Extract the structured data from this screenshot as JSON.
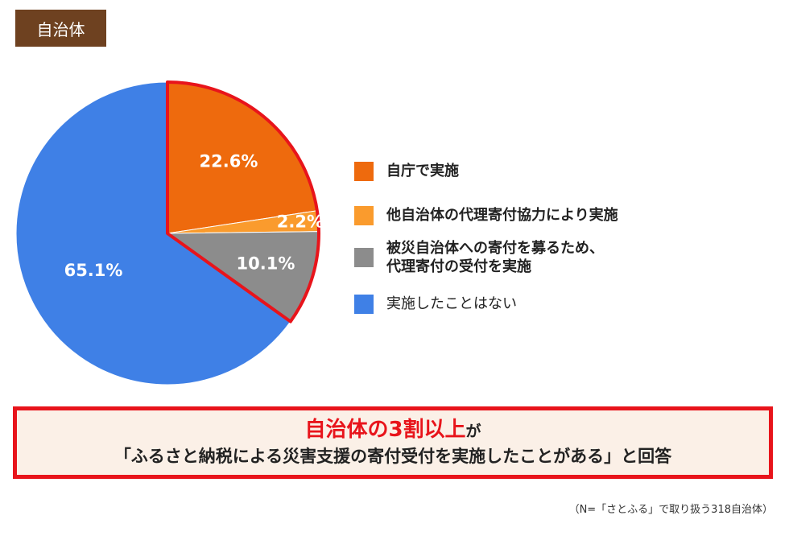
{
  "tag": {
    "label": "自治体"
  },
  "chart_data": {
    "type": "pie",
    "title": "自治体",
    "start_angle_deg": 0,
    "direction": "clockwise",
    "highlight_indices": [
      0,
      1,
      2
    ],
    "highlight_color": "#e8141b",
    "slices": [
      {
        "label": "自庁で実施",
        "value": 22.6,
        "display": "22.6%",
        "color": "#ee6a0d"
      },
      {
        "label": "他自治体の代理寄付協力により実施",
        "value": 2.2,
        "display": "2.2%",
        "color": "#fa9b2d"
      },
      {
        "label": "被災自治体への寄付を募るため、\n代理寄付の受付を実施",
        "value": 10.1,
        "display": "10.1%",
        "color": "#8c8c8c"
      },
      {
        "label": "実施したことはない",
        "value": 65.1,
        "display": "65.1%",
        "color": "#3f80e6"
      }
    ]
  },
  "callout": {
    "highlight": "自治体の3割以上",
    "suffix": "が",
    "line2": "「ふるさと納税による災害支援の寄付受付を実施したことがある」と回答"
  },
  "note": "（N=「さとふる」で取り扱う318自治体）"
}
